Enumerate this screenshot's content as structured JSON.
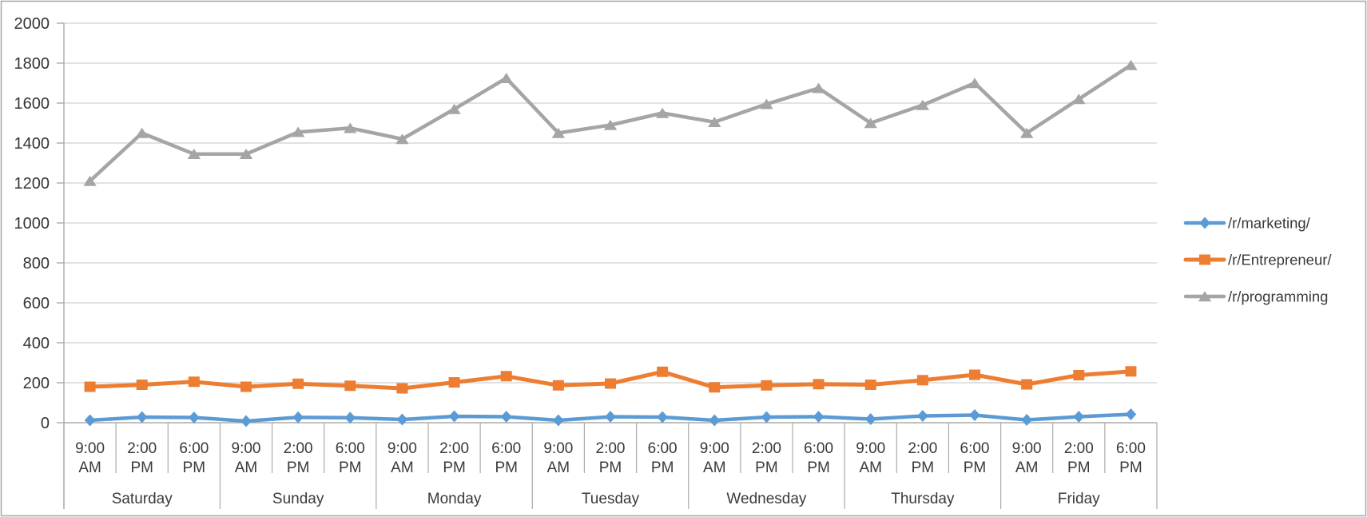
{
  "chart_data": {
    "type": "line",
    "title": "",
    "grid": true,
    "legend_position": "right",
    "y_axis": {
      "min": 0,
      "max": 2000,
      "step": 200,
      "tick_labels": [
        "0",
        "200",
        "400",
        "600",
        "800",
        "1000",
        "1200",
        "1400",
        "1600",
        "1800",
        "2000"
      ]
    },
    "x_axis": {
      "days": [
        "Saturday",
        "Sunday",
        "Monday",
        "Tuesday",
        "Wednesday",
        "Thursday",
        "Friday"
      ],
      "times_per_day": [
        [
          "9:00",
          "AM"
        ],
        [
          "2:00",
          "PM"
        ],
        [
          "6:00",
          "PM"
        ]
      ]
    },
    "series": [
      {
        "name": "/r/marketing/",
        "color": "#5B9BD5",
        "marker": "diamond",
        "values": [
          12,
          28,
          26,
          8,
          27,
          25,
          16,
          32,
          30,
          12,
          30,
          28,
          12,
          28,
          30,
          18,
          34,
          38,
          14,
          30,
          42
        ]
      },
      {
        "name": "/r/Entrepreneur/",
        "color": "#ED7D31",
        "marker": "square",
        "values": [
          180,
          190,
          205,
          180,
          195,
          185,
          172,
          202,
          233,
          187,
          196,
          255,
          177,
          187,
          193,
          190,
          213,
          240,
          192,
          238,
          257
        ]
      },
      {
        "name": "/r/programming",
        "color": "#A5A5A5",
        "marker": "triangle",
        "values": [
          1210,
          1450,
          1345,
          1345,
          1455,
          1475,
          1420,
          1570,
          1725,
          1450,
          1490,
          1550,
          1505,
          1595,
          1675,
          1500,
          1590,
          1700,
          1450,
          1620,
          1790
        ]
      }
    ],
    "colors": {
      "gridline": "#D9D9D9",
      "axis": "#ABABAB",
      "text": "#3A3A3A",
      "frame": "#A6A6A6"
    }
  }
}
